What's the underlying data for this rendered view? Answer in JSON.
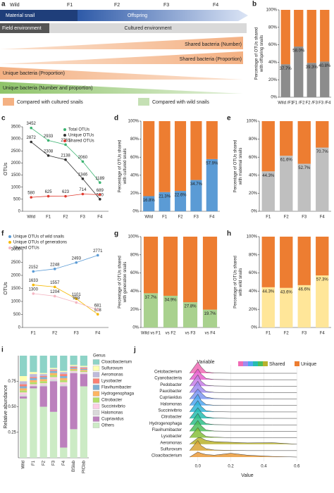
{
  "diagram": {
    "label": "a",
    "generations": [
      "Wild",
      "F1",
      "F2",
      "F3",
      "F4"
    ],
    "snail_bar": [
      "Material snail",
      "Offspring"
    ],
    "environment_bar": [
      "Field environment",
      "Cultured environment"
    ],
    "wedges": [
      "Shared bacteria (Number)",
      "Shared bacteria (Proportion)",
      "Unique bacteria (Proportion)",
      "Unique bacteria (Number and proportion)"
    ],
    "legend": [
      "Compared with cultured snails",
      "Compared with wild snails"
    ]
  },
  "chart_data": [
    {
      "type": "bar",
      "stacked": true,
      "label": "b",
      "ylabel": [
        "Percentage of OTUs shared",
        "with offspring snails"
      ],
      "categories": [
        "Wild /F1",
        "F1 /F2",
        "F2 /F3",
        "F3 /F4"
      ],
      "series": [
        {
          "color": "#8c8c8c",
          "values": [
            37.7,
            58.0,
            39.3,
            40.8
          ],
          "value_labels": [
            "37.7%",
            "58.0%",
            "39.3%",
            "40.8%"
          ]
        },
        {
          "color": "#ed7d31",
          "values": [
            62.3,
            42.0,
            60.7,
            59.2
          ]
        }
      ],
      "ylim": [
        0,
        100
      ],
      "yticks": [
        {
          "value": 0,
          "label": "0%"
        },
        {
          "value": 20,
          "label": "20%"
        },
        {
          "value": 40,
          "label": "40%"
        },
        {
          "value": 60,
          "label": "60%"
        },
        {
          "value": 80,
          "label": "80%"
        },
        {
          "value": 100,
          "label": "100%"
        }
      ]
    },
    {
      "type": "line",
      "label": "c",
      "ylabel": "OTUs",
      "categories": [
        "Wild",
        "F1",
        "F2",
        "F3",
        "F4"
      ],
      "series": [
        {
          "name": "Total OTUs",
          "color": "#3cb371",
          "values": [
            3452,
            2933,
            2761,
            2060,
            1189
          ]
        },
        {
          "name": "Unique OTUs",
          "color": "#333333",
          "values": [
            2872,
            2308,
            2138,
            1346,
            500
          ]
        },
        {
          "name": "Shared OTUs",
          "color": "#e03c31",
          "values": [
            580,
            625,
            623,
            714,
            689
          ]
        }
      ],
      "ylim": [
        0,
        3500
      ],
      "yticks": [
        0,
        500,
        1000,
        1500,
        2000,
        2500,
        3000,
        3500
      ]
    },
    {
      "type": "bar",
      "stacked": true,
      "label": "d",
      "ylabel": [
        "Percentage of OTUs shared",
        "with cultured snails"
      ],
      "categories": [
        "Wild",
        "F1",
        "F2",
        "F3",
        "F4"
      ],
      "series": [
        {
          "color": "#5b9bd5",
          "values": [
            16.8,
            21.3,
            22.6,
            34.7,
            57.9
          ],
          "value_labels": [
            "16.8%",
            "21.3%",
            "22.6%",
            "34.7%",
            "57.9%"
          ]
        },
        {
          "color": "#ed7d31",
          "values": [
            83.2,
            78.7,
            77.4,
            65.3,
            42.1
          ]
        }
      ],
      "ylim": [
        0,
        100
      ],
      "yticks": [
        {
          "value": 0,
          "label": "0%"
        },
        {
          "value": 20,
          "label": "20%"
        },
        {
          "value": 40,
          "label": "40%"
        },
        {
          "value": 60,
          "label": "60%"
        },
        {
          "value": 80,
          "label": "80%"
        },
        {
          "value": 100,
          "label": "100%"
        }
      ]
    },
    {
      "type": "bar",
      "stacked": true,
      "label": "e",
      "ylabel": [
        "Percentage of OTUs shared",
        "with maternal snails"
      ],
      "categories": [
        "F1",
        "F2",
        "F3",
        "F4"
      ],
      "series": [
        {
          "color": "#bfbfbf",
          "values": [
            44.3,
            61.6,
            52.7,
            70.7
          ],
          "value_labels": [
            "44.3%",
            "61.6%",
            "52.7%",
            "70.7%"
          ]
        },
        {
          "color": "#ed7d31",
          "values": [
            55.7,
            38.4,
            47.3,
            29.3
          ]
        }
      ],
      "ylim": [
        0,
        100
      ],
      "yticks": [
        {
          "value": 0,
          "label": "0%"
        },
        {
          "value": 20,
          "label": "20%"
        },
        {
          "value": 40,
          "label": "40%"
        },
        {
          "value": 60,
          "label": "60%"
        },
        {
          "value": 80,
          "label": "80%"
        },
        {
          "value": 100,
          "label": "100%"
        }
      ]
    },
    {
      "type": "line",
      "label": "f",
      "ylabel": "OTUs",
      "categories": [
        "F1",
        "F2",
        "F3",
        "F4"
      ],
      "series": [
        {
          "name": "Unique OTUs of wild snails",
          "color": "#5b9bd5",
          "values": [
            2152,
            2248,
            2493,
            2771
          ]
        },
        {
          "name": "Unique OTUs of generations",
          "color": "#f5b800",
          "values": [
            1633,
            1557,
            1101,
            508
          ]
        },
        {
          "name": "Shared OTUs",
          "color": "#f4b6c2",
          "values": [
            1300,
            1204,
            959,
            681
          ]
        }
      ],
      "ylim": [
        0,
        3000
      ],
      "yticks": [
        0,
        500,
        1000,
        1500,
        2000,
        2500,
        3000
      ]
    },
    {
      "type": "bar",
      "stacked": true,
      "label": "g",
      "ylabel": [
        "Percentage of OTUs shared",
        "with generation snails"
      ],
      "categories": [
        "Wild vs F1",
        "vs F2",
        "vs F3",
        "vs F4"
      ],
      "series": [
        {
          "color": "#a9d18e",
          "values": [
            37.7,
            34.9,
            27.8,
            19.7
          ],
          "value_labels": [
            "37.7%",
            "34.9%",
            "27.8%",
            "19.7%"
          ]
        },
        {
          "color": "#ed7d31",
          "values": [
            62.3,
            65.1,
            72.2,
            80.3
          ]
        }
      ],
      "ylim": [
        0,
        100
      ],
      "yticks": [
        {
          "value": 0,
          "label": "0%"
        },
        {
          "value": 20,
          "label": "20%"
        },
        {
          "value": 40,
          "label": "40%"
        },
        {
          "value": 60,
          "label": "60%"
        },
        {
          "value": 80,
          "label": "80%"
        },
        {
          "value": 100,
          "label": "100%"
        }
      ]
    },
    {
      "type": "bar",
      "stacked": true,
      "label": "h",
      "ylabel": [
        "Percentage of OTUs shared",
        "with wild snails"
      ],
      "categories": [
        "F1",
        "F2",
        "F3",
        "F4"
      ],
      "series": [
        {
          "color": "#ffe699",
          "values": [
            44.3,
            43.6,
            46.6,
            57.3
          ],
          "value_labels": [
            "44.3%",
            "43.6%",
            "46.6%",
            "57.3%"
          ]
        },
        {
          "color": "#ed7d31",
          "values": [
            55.7,
            56.4,
            53.4,
            42.7
          ]
        }
      ],
      "ylim": [
        0,
        100
      ],
      "yticks": [
        {
          "value": 0,
          "label": "0%"
        },
        {
          "value": 20,
          "label": "20%"
        },
        {
          "value": 40,
          "label": "40%"
        },
        {
          "value": 60,
          "label": "60%"
        },
        {
          "value": 80,
          "label": "80%"
        },
        {
          "value": 100,
          "label": "100%"
        }
      ]
    },
    {
      "type": "bar",
      "stacked": true,
      "label": "i",
      "ylabel": "Relative abundance",
      "legend_title": "Genus",
      "categories": [
        "Wild",
        "F1",
        "F2",
        "F3",
        "F4",
        "BSlab",
        "PIClab"
      ],
      "series": [
        {
          "name": "Others",
          "color": "#ccebc5",
          "values": [
            0.58,
            0.68,
            0.5,
            0.45,
            0.1,
            0.28,
            0.7
          ]
        },
        {
          "name": "Cupriavidus",
          "color": "#bc80bd",
          "values": [
            0.02,
            0.02,
            0.2,
            0.3,
            0.6,
            0.55,
            0.12
          ]
        },
        {
          "name": "Halomonas",
          "color": "#d9d9d9",
          "values": [
            0.02,
            0.01,
            0.02,
            0.02,
            0.02,
            0.01,
            0.01
          ]
        },
        {
          "name": "Succinivibrio",
          "color": "#fccde5",
          "values": [
            0.02,
            0.01,
            0.01,
            0.02,
            0.02,
            0.01,
            0.01
          ]
        },
        {
          "name": "Citrobacter",
          "color": "#b3de69",
          "values": [
            0.02,
            0.02,
            0.02,
            0.02,
            0.02,
            0.01,
            0.01
          ]
        },
        {
          "name": "Hydrogenophaga",
          "color": "#fdb462",
          "values": [
            0.02,
            0.02,
            0.02,
            0.02,
            0.02,
            0.01,
            0.01
          ]
        },
        {
          "name": "Flavihumibacter",
          "color": "#80b1d3",
          "values": [
            0.02,
            0.02,
            0.02,
            0.02,
            0.02,
            0.01,
            0.01
          ]
        },
        {
          "name": "Lysobacter",
          "color": "#fb8072",
          "values": [
            0.02,
            0.01,
            0.01,
            0.01,
            0.02,
            0.01,
            0.01
          ]
        },
        {
          "name": "Aeromonas",
          "color": "#bebada",
          "values": [
            0.03,
            0.03,
            0.02,
            0.01,
            0.02,
            0.01,
            0.01
          ]
        },
        {
          "name": "Sulfurovum",
          "color": "#ffffb3",
          "values": [
            0.05,
            0.02,
            0.01,
            0.01,
            0.01,
            0.01,
            0.01
          ]
        },
        {
          "name": "Cloacibacterium",
          "color": "#8dd3c7",
          "values": [
            0.2,
            0.16,
            0.17,
            0.12,
            0.15,
            0.09,
            0.1
          ]
        }
      ],
      "ylim": [
        0,
        1
      ],
      "yticks": [
        0.25,
        {
          "value": 0.5,
          "label": "0.50"
        },
        0.75
      ]
    },
    {
      "type": "ridgeline",
      "label": "j",
      "ylabel": "Variable",
      "xlabel": "Value",
      "x": [
        -0.05,
        0,
        0.02,
        0.05,
        0.1,
        0.2,
        0.3,
        0.45,
        0.6
      ],
      "xlim": [
        -0.08,
        0.68
      ],
      "xticks": [
        {
          "value": 0,
          "label": "0.0"
        },
        {
          "value": 0.2,
          "label": "0.2"
        },
        {
          "value": 0.4,
          "label": "0.4"
        },
        {
          "value": 0.6,
          "label": "0.6"
        }
      ],
      "grid": true,
      "legend": [
        {
          "name": "Shared",
          "color": "#4fa7f0"
        },
        {
          "name": "Unique",
          "color": "#ed7d31"
        }
      ],
      "series": [
        {
          "name": "Cetobacterium",
          "color": "#f06bb5",
          "values": [
            0,
            0.9,
            0.5,
            0.1,
            0.02,
            0,
            0,
            0,
            0
          ]
        },
        {
          "name": "Cyanobacteria",
          "color": "#e75fcf",
          "values": [
            0,
            0.85,
            0.45,
            0.1,
            0.02,
            0,
            0,
            0,
            0
          ]
        },
        {
          "name": "Pedobacter",
          "color": "#c77ce8",
          "values": [
            0,
            0.9,
            0.4,
            0.08,
            0.02,
            0,
            0,
            0,
            0
          ]
        },
        {
          "name": "Paucibacter",
          "color": "#a08bf0",
          "values": [
            0,
            0.9,
            0.45,
            0.1,
            0.02,
            0,
            0,
            0,
            0
          ]
        },
        {
          "name": "Cupriavidus",
          "color": "#7b96f2",
          "values": [
            0,
            0.8,
            0.5,
            0.15,
            0.04,
            0.01,
            0,
            0,
            0
          ]
        },
        {
          "name": "Halomonas",
          "color": "#4fa7f0",
          "values": [
            0,
            0.9,
            0.4,
            0.08,
            0.02,
            0,
            0,
            0,
            0
          ]
        },
        {
          "name": "Succinivibrio",
          "color": "#2fb5d8",
          "values": [
            0,
            0.9,
            0.45,
            0.1,
            0.02,
            0,
            0,
            0,
            0
          ]
        },
        {
          "name": "Citrobacter",
          "color": "#25bdb0",
          "values": [
            0,
            0.85,
            0.5,
            0.12,
            0.03,
            0,
            0,
            0,
            0
          ]
        },
        {
          "name": "Hydrogenophaga",
          "color": "#2fbf8a",
          "values": [
            0,
            0.9,
            0.45,
            0.1,
            0.02,
            0,
            0,
            0,
            0
          ]
        },
        {
          "name": "Flavihumibacter",
          "color": "#4cbf5c",
          "values": [
            0,
            0.85,
            0.45,
            0.1,
            0.02,
            0,
            0,
            0,
            0
          ]
        },
        {
          "name": "Lysobacter",
          "color": "#86bf3a",
          "values": [
            0,
            0.8,
            0.4,
            0.1,
            0.05,
            0,
            0,
            0,
            0
          ]
        },
        {
          "name": "Aeromonas",
          "color": "#b8b22c",
          "label_color": "#e31a1c",
          "values": [
            0,
            0.5,
            0.5,
            0.3,
            0.2,
            0.15,
            0.1,
            0.12,
            0
          ]
        },
        {
          "name": "Sulfurovum",
          "color": "#d9a534",
          "values": [
            0,
            0.8,
            0.4,
            0.15,
            0.05,
            0.02,
            0,
            0,
            0
          ]
        },
        {
          "name": "Cloacibacterium",
          "color": "#ea9a3a",
          "label_color": "#e31a1c",
          "values": [
            0,
            0.4,
            0.3,
            0.2,
            0.15,
            0.3,
            0.15,
            0.05,
            0
          ]
        }
      ]
    }
  ]
}
